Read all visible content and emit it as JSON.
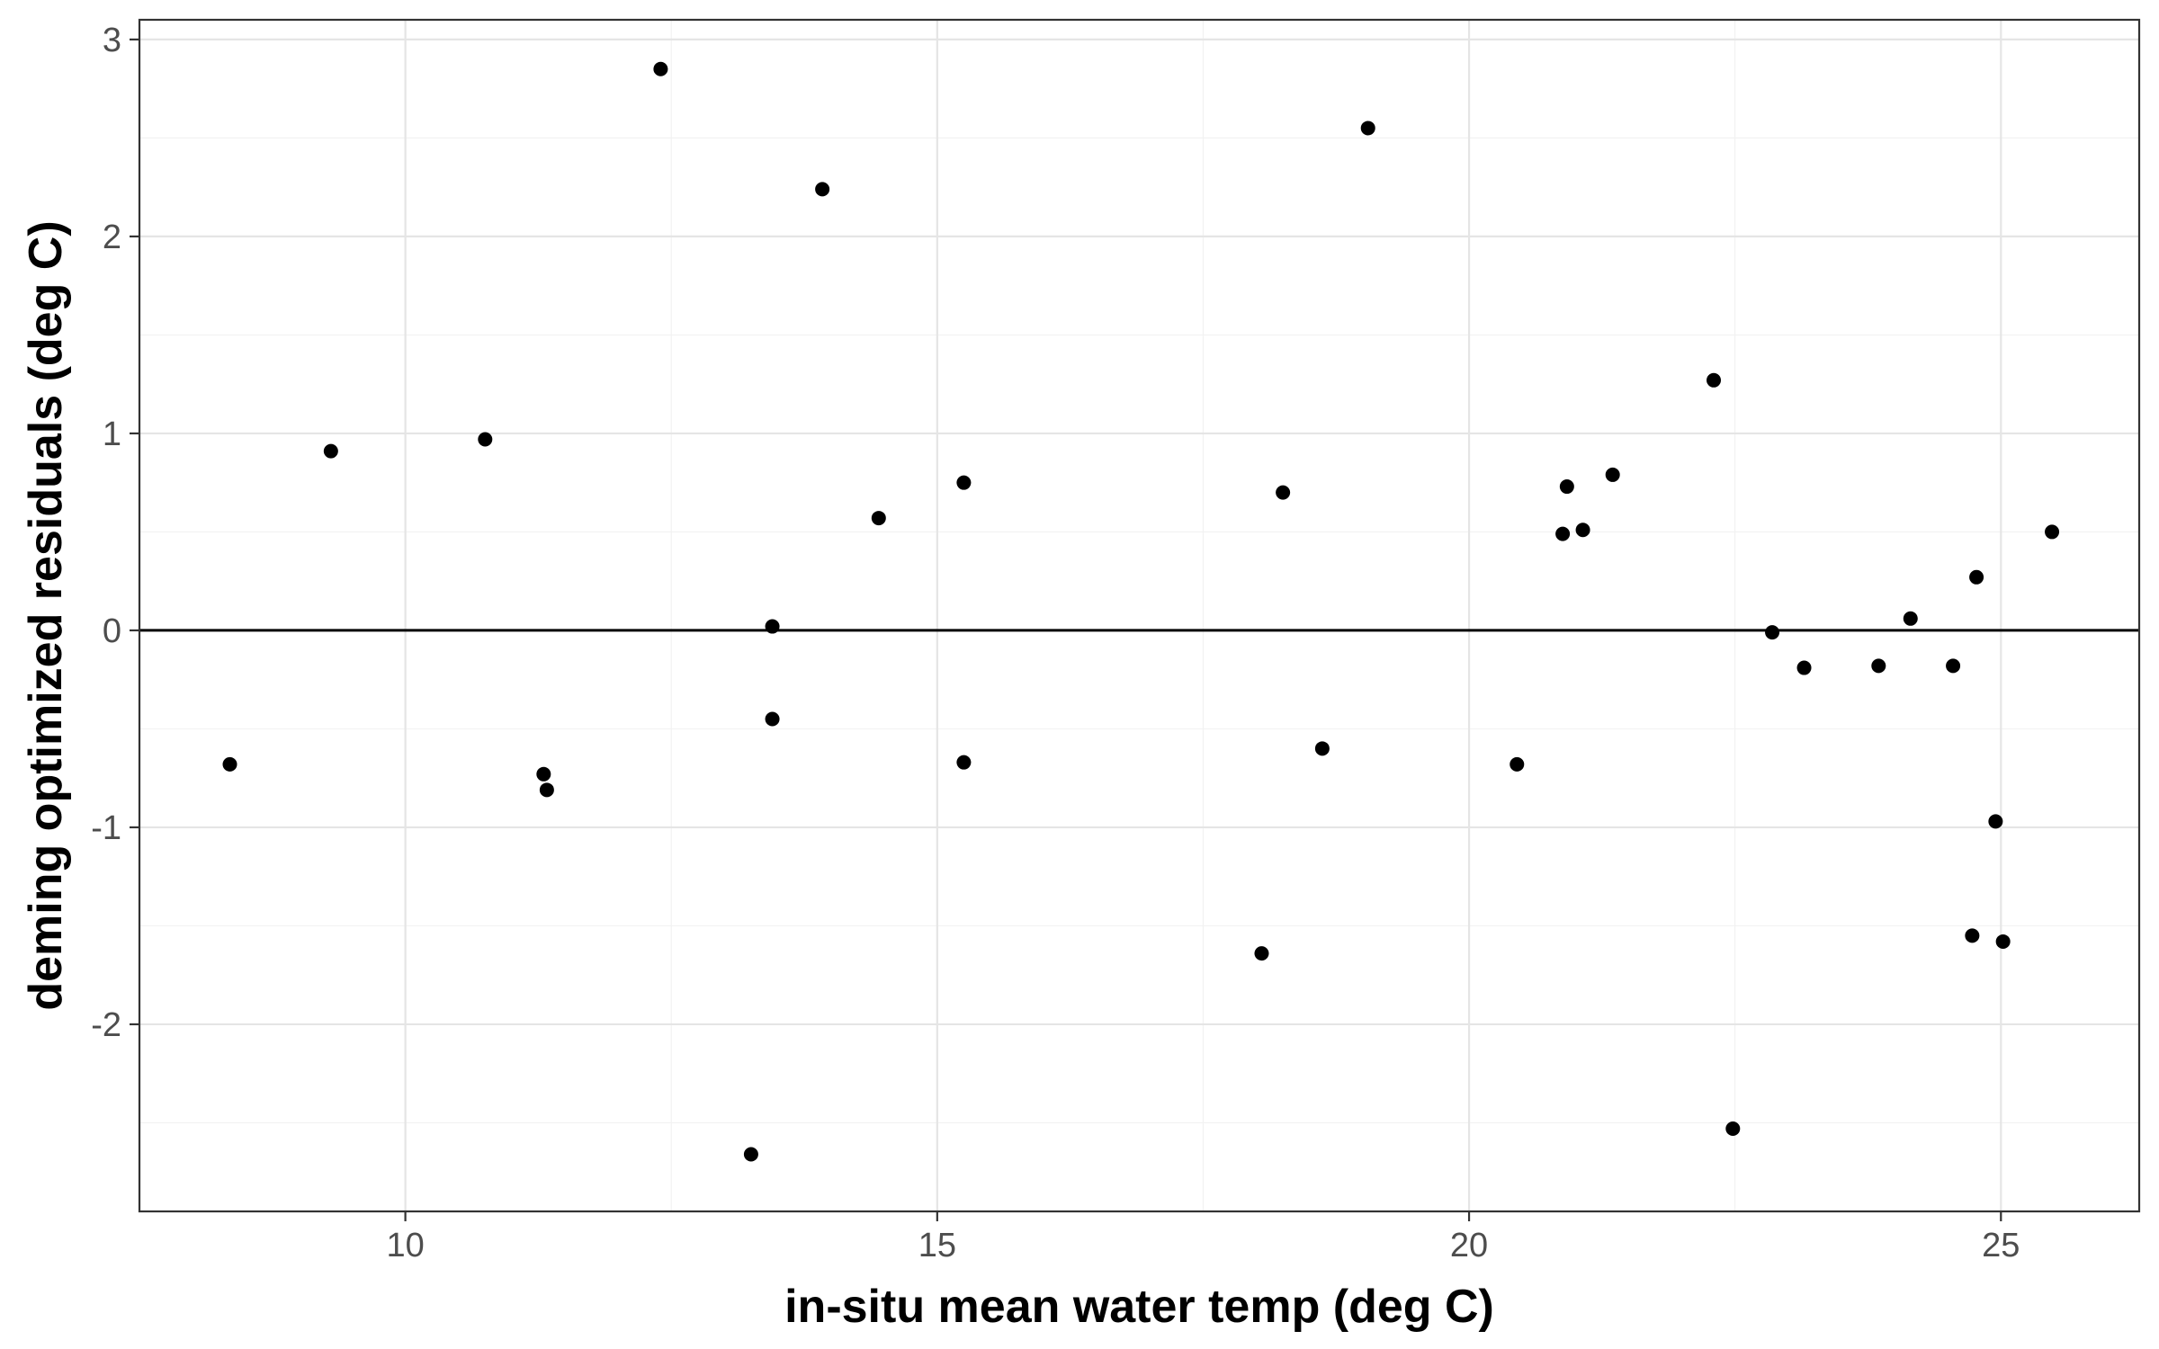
{
  "chart_data": {
    "type": "scatter",
    "title": "",
    "xlabel": "in-situ mean water temp (deg C)",
    "ylabel": "deming optimized residuals (deg C)",
    "xlim": [
      7.5,
      26.3
    ],
    "ylim": [
      -2.95,
      3.1
    ],
    "xticks": [
      10,
      15,
      20,
      25
    ],
    "yticks": [
      -2,
      -1,
      0,
      1,
      2,
      3
    ],
    "xtick_labels": [
      "10",
      "15",
      "20",
      "25"
    ],
    "ytick_labels": [
      "-2",
      "-1",
      "0",
      "1",
      "2",
      "3"
    ],
    "grid": true,
    "reference_line_y": 0,
    "point_color": "#000000",
    "points": [
      {
        "x": 8.35,
        "y": -0.68
      },
      {
        "x": 9.3,
        "y": 0.91
      },
      {
        "x": 10.75,
        "y": 0.97
      },
      {
        "x": 11.3,
        "y": -0.73
      },
      {
        "x": 11.33,
        "y": -0.81
      },
      {
        "x": 12.4,
        "y": 2.85
      },
      {
        "x": 13.25,
        "y": -2.66
      },
      {
        "x": 13.45,
        "y": 0.02
      },
      {
        "x": 13.45,
        "y": -0.45
      },
      {
        "x": 13.92,
        "y": 2.24
      },
      {
        "x": 14.45,
        "y": 0.57
      },
      {
        "x": 15.25,
        "y": 0.75
      },
      {
        "x": 15.25,
        "y": -0.67
      },
      {
        "x": 18.05,
        "y": -1.64
      },
      {
        "x": 18.25,
        "y": 0.7
      },
      {
        "x": 18.62,
        "y": -0.6
      },
      {
        "x": 19.05,
        "y": 2.55
      },
      {
        "x": 20.45,
        "y": -0.68
      },
      {
        "x": 20.88,
        "y": 0.49
      },
      {
        "x": 20.92,
        "y": 0.73
      },
      {
        "x": 21.07,
        "y": 0.51
      },
      {
        "x": 21.35,
        "y": 0.79
      },
      {
        "x": 22.3,
        "y": 1.27
      },
      {
        "x": 22.48,
        "y": -2.53
      },
      {
        "x": 22.85,
        "y": -0.01
      },
      {
        "x": 23.15,
        "y": -0.19
      },
      {
        "x": 23.85,
        "y": -0.18
      },
      {
        "x": 24.15,
        "y": 0.06
      },
      {
        "x": 24.55,
        "y": -0.18
      },
      {
        "x": 24.73,
        "y": -1.55
      },
      {
        "x": 24.77,
        "y": 0.27
      },
      {
        "x": 24.95,
        "y": -0.97
      },
      {
        "x": 25.02,
        "y": -1.58
      },
      {
        "x": 25.48,
        "y": 0.5
      }
    ]
  }
}
